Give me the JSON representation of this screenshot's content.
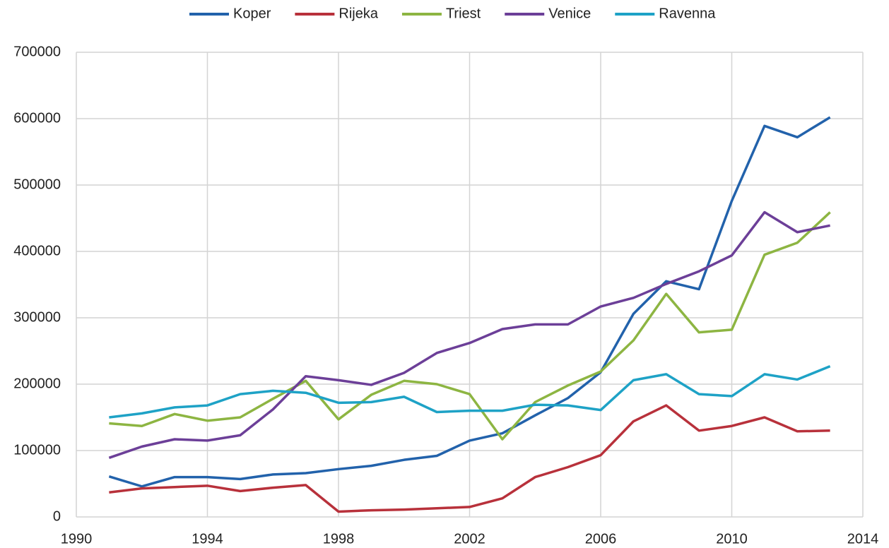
{
  "chart_data": {
    "type": "line",
    "x": [
      1991,
      1992,
      1993,
      1994,
      1995,
      1996,
      1997,
      1998,
      1999,
      2000,
      2001,
      2002,
      2003,
      2004,
      2005,
      2006,
      2007,
      2008,
      2009,
      2010,
      2011,
      2012,
      2013
    ],
    "series": [
      {
        "name": "Koper",
        "color": "#2262ab",
        "values": [
          61000,
          46000,
          60000,
          60000,
          57000,
          64000,
          66000,
          72000,
          77000,
          86000,
          92000,
          115000,
          126000,
          153000,
          179000,
          218000,
          306000,
          355000,
          343000,
          476000,
          589000,
          572000,
          602000
        ]
      },
      {
        "name": "Rijeka",
        "color": "#b8313b",
        "values": [
          37000,
          43000,
          45000,
          47000,
          39000,
          44000,
          48000,
          8000,
          10000,
          11000,
          13000,
          15000,
          28000,
          60000,
          75000,
          93000,
          144000,
          168000,
          130000,
          137000,
          150000,
          129000,
          130000
        ]
      },
      {
        "name": "Triest",
        "color": "#8db542",
        "values": [
          141000,
          137000,
          155000,
          145000,
          150000,
          178000,
          205000,
          147000,
          184000,
          205000,
          200000,
          185000,
          117000,
          173000,
          198000,
          219000,
          266000,
          336000,
          278000,
          282000,
          395000,
          413000,
          459000
        ]
      },
      {
        "name": "Venice",
        "color": "#6c3f98",
        "values": [
          89000,
          106000,
          117000,
          115000,
          123000,
          162000,
          212000,
          206000,
          199000,
          217000,
          247000,
          262000,
          283000,
          290000,
          290000,
          317000,
          330000,
          351000,
          370000,
          394000,
          459000,
          429000,
          439000
        ]
      },
      {
        "name": "Ravenna",
        "color": "#1ea2c6",
        "values": [
          150000,
          156000,
          165000,
          168000,
          185000,
          190000,
          187000,
          172000,
          173000,
          181000,
          158000,
          160000,
          160000,
          169000,
          168000,
          161000,
          206000,
          215000,
          185000,
          182000,
          215000,
          207000,
          227000
        ]
      }
    ],
    "xlim": [
      1990,
      2014
    ],
    "xticks": [
      1990,
      1994,
      1998,
      2002,
      2006,
      2010,
      2014
    ],
    "ylim": [
      0,
      700000
    ],
    "yticks": [
      0,
      100000,
      200000,
      300000,
      400000,
      500000,
      600000,
      700000
    ],
    "grid": true,
    "legend": "top"
  }
}
